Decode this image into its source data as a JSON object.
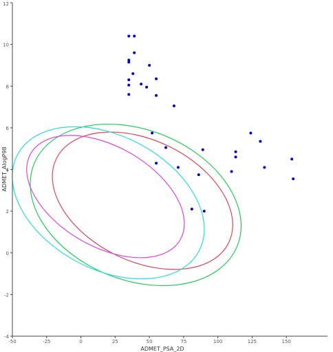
{
  "chart_data": {
    "type": "scatter",
    "xlabel": "ADMET_PSA_2D",
    "ylabel": "ADMET_AlogP98",
    "xlim": [
      -50,
      175
    ],
    "ylim": [
      -4,
      12
    ],
    "xticks": [
      "-50",
      "-25",
      "0",
      "25",
      "50",
      "75",
      "100",
      "125",
      "150"
    ],
    "yticks": [
      "-4",
      "-2",
      "0",
      "2",
      "4",
      "6",
      "8",
      "10",
      "12"
    ],
    "grid": false,
    "points": [
      {
        "x": 35,
        "y": 10.4
      },
      {
        "x": 39,
        "y": 10.4
      },
      {
        "x": 39,
        "y": 9.6
      },
      {
        "x": 35,
        "y": 9.25
      },
      {
        "x": 35,
        "y": 9.15
      },
      {
        "x": 50,
        "y": 9.0
      },
      {
        "x": 38,
        "y": 8.6
      },
      {
        "x": 55,
        "y": 8.35
      },
      {
        "x": 35,
        "y": 8.3
      },
      {
        "x": 44,
        "y": 8.1
      },
      {
        "x": 35,
        "y": 8.05
      },
      {
        "x": 48,
        "y": 7.95
      },
      {
        "x": 35,
        "y": 7.6
      },
      {
        "x": 55,
        "y": 7.55
      },
      {
        "x": 68,
        "y": 7.05
      },
      {
        "x": 52,
        "y": 5.75
      },
      {
        "x": 124,
        "y": 5.75
      },
      {
        "x": 131,
        "y": 5.35
      },
      {
        "x": 62,
        "y": 5.05
      },
      {
        "x": 89,
        "y": 4.95
      },
      {
        "x": 113,
        "y": 4.85
      },
      {
        "x": 113,
        "y": 4.6
      },
      {
        "x": 154,
        "y": 4.5
      },
      {
        "x": 55,
        "y": 4.3
      },
      {
        "x": 71,
        "y": 4.1
      },
      {
        "x": 134,
        "y": 4.1
      },
      {
        "x": 110,
        "y": 3.9
      },
      {
        "x": 86,
        "y": 3.75
      },
      {
        "x": 155,
        "y": 3.55
      },
      {
        "x": 81,
        "y": 2.1
      },
      {
        "x": 90,
        "y": 2.0
      }
    ],
    "ellipses": [
      {
        "color": "#22cc55",
        "cx": 40,
        "cy": 2.3,
        "rx": 80,
        "ry": 3.6,
        "angle_deg": -22
      },
      {
        "color": "#dd4455",
        "cx": 45,
        "cy": 2.5,
        "rx": 70,
        "ry": 2.9,
        "angle_deg": -26
      },
      {
        "color": "#22dddd",
        "cx": 20,
        "cy": 2.4,
        "rx": 75,
        "ry": 3.2,
        "angle_deg": -28
      },
      {
        "color": "#dd44dd",
        "cx": 18,
        "cy": 2.7,
        "rx": 63,
        "ry": 2.4,
        "angle_deg": -30
      }
    ],
    "point_color": "#0000cc"
  }
}
